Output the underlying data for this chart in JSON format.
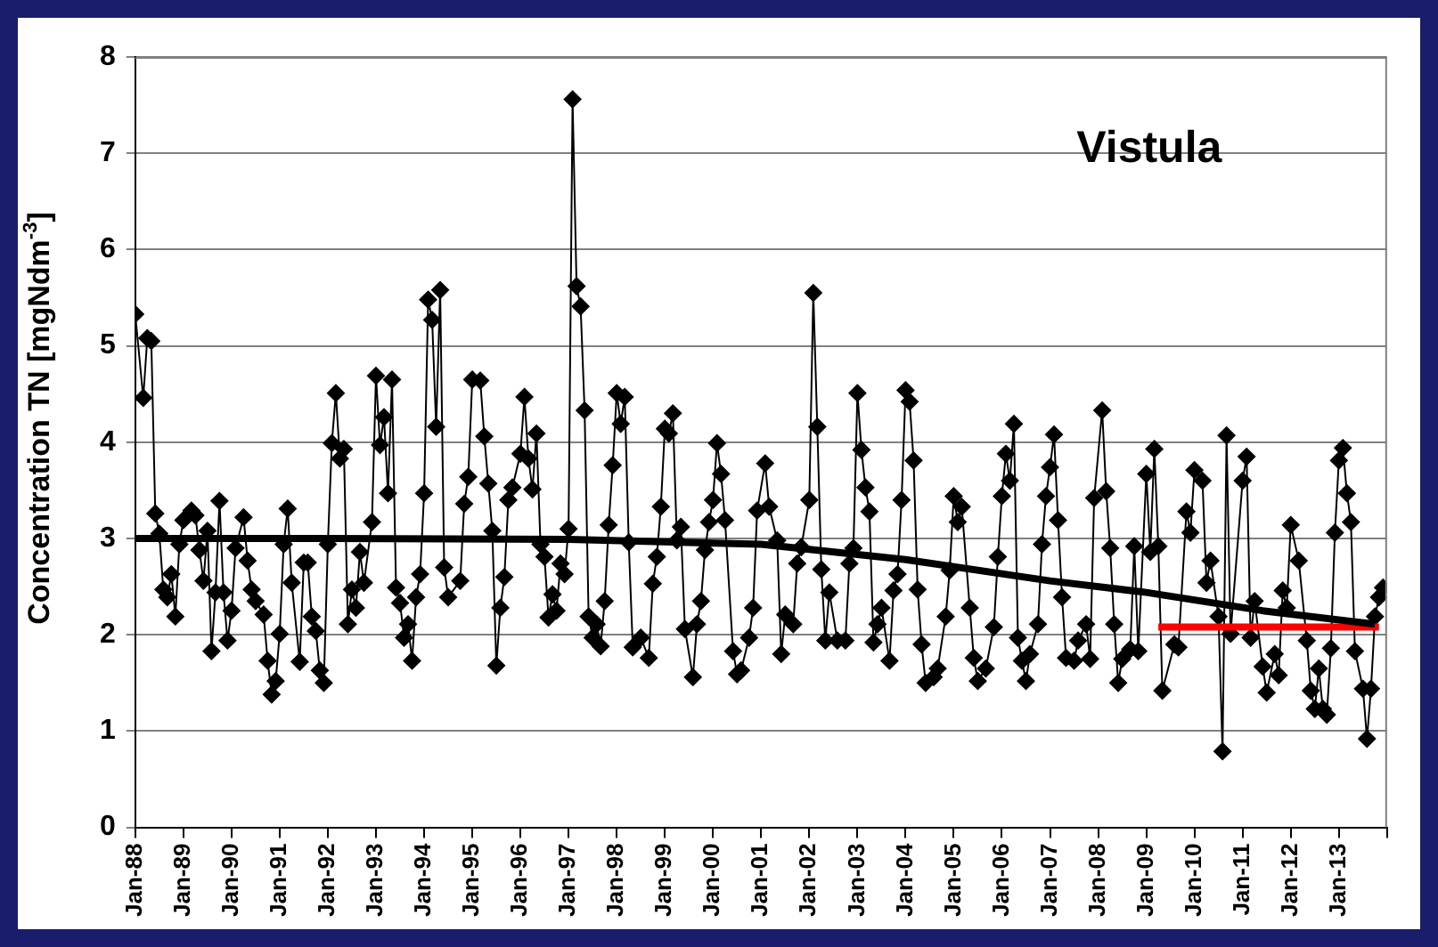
{
  "chart_data": {
    "type": "line",
    "ylabel": "Concentration TN [mgNdm$^{-3}$]",
    "annotations": [
      "Vistula"
    ],
    "marker": "diamond",
    "line_style": "solid",
    "grid": "y",
    "legend": false,
    "xlim": [
      "1988-01",
      "2014-01"
    ],
    "ylim": [
      0,
      8
    ],
    "yticks": [
      0,
      1,
      2,
      3,
      4,
      5,
      6,
      7,
      8
    ],
    "xticks": [
      {
        "value": "1988-01",
        "label": "Jan-88"
      },
      {
        "value": "1989-01",
        "label": "Jan-89"
      },
      {
        "value": "1990-01",
        "label": "Jan-90"
      },
      {
        "value": "1991-01",
        "label": "Jan-91"
      },
      {
        "value": "1992-01",
        "label": "Jan-92"
      },
      {
        "value": "1993-01",
        "label": "Jan-93"
      },
      {
        "value": "1994-01",
        "label": "Jan-94"
      },
      {
        "value": "1995-01",
        "label": "Jan-95"
      },
      {
        "value": "1996-01",
        "label": "Jan-96"
      },
      {
        "value": "1997-01",
        "label": "Jan-97"
      },
      {
        "value": "1998-01",
        "label": "Jan-98"
      },
      {
        "value": "1999-01",
        "label": "Jan-99"
      },
      {
        "value": "2000-01",
        "label": "Jan-00"
      },
      {
        "value": "2001-01",
        "label": "Jan-01"
      },
      {
        "value": "2002-01",
        "label": "Jan-02"
      },
      {
        "value": "2003-01",
        "label": "Jan-03"
      },
      {
        "value": "2004-01",
        "label": "Jan-04"
      },
      {
        "value": "2005-01",
        "label": "Jan-05"
      },
      {
        "value": "2006-01",
        "label": "Jan-06"
      },
      {
        "value": "2007-01",
        "label": "Jan-07"
      },
      {
        "value": "2008-01",
        "label": "Jan-08"
      },
      {
        "value": "2009-01",
        "label": "Jan-09"
      },
      {
        "value": "2010-01",
        "label": "Jan-10"
      },
      {
        "value": "2011-01",
        "label": "Jan-11"
      },
      {
        "value": "2012-01",
        "label": "Jan-12"
      },
      {
        "value": "2013-01",
        "label": "Jan-13"
      },
      {
        "value": "2014-01",
        "label": null
      }
    ],
    "series": [
      {
        "color": "#000000",
        "x": [
          "1988-01",
          "1988-03",
          "1988-04",
          "1988-05",
          "1988-06",
          "1988-07",
          "1988-08",
          "1988-09",
          "1988-10",
          "1988-11",
          "1988-12",
          "1989-01",
          "1989-03",
          "1989-04",
          "1989-05",
          "1989-06",
          "1989-07",
          "1989-08",
          "1989-09",
          "1989-10",
          "1989-11",
          "1989-12",
          "1990-01",
          "1990-02",
          "1990-04",
          "1990-05",
          "1990-06",
          "1990-07",
          "1990-09",
          "1990-10",
          "1990-11",
          "1990-12",
          "1991-01",
          "1991-02",
          "1991-03",
          "1991-04",
          "1991-06",
          "1991-07",
          "1991-08",
          "1991-09",
          "1991-10",
          "1991-11",
          "1991-12",
          "1992-01",
          "1992-02",
          "1992-03",
          "1992-04",
          "1992-05",
          "1992-06",
          "1992-07",
          "1992-08",
          "1992-09",
          "1992-10",
          "1992-12",
          "1993-01",
          "1993-02",
          "1993-03",
          "1993-04",
          "1993-05",
          "1993-06",
          "1993-07",
          "1993-08",
          "1993-09",
          "1993-10",
          "1993-11",
          "1993-12",
          "1994-01",
          "1994-02",
          "1994-03",
          "1994-04",
          "1994-05",
          "1994-06",
          "1994-07",
          "1994-10",
          "1994-11",
          "1994-12",
          "1995-01",
          "1995-03",
          "1995-04",
          "1995-05",
          "1995-06",
          "1995-07",
          "1995-08",
          "1995-09",
          "1995-10",
          "1995-11",
          "1996-01",
          "1996-02",
          "1996-03",
          "1996-04",
          "1996-05",
          "1996-06",
          "1996-07",
          "1996-08",
          "1996-09",
          "1996-10",
          "1996-11",
          "1996-12",
          "1997-01",
          "1997-02",
          "1997-03",
          "1997-04",
          "1997-05",
          "1997-06",
          "1997-07",
          "1997-08",
          "1997-09",
          "1997-10",
          "1997-11",
          "1997-12",
          "1998-01",
          "1998-02",
          "1998-03",
          "1998-04",
          "1998-05",
          "1998-07",
          "1998-09",
          "1998-10",
          "1998-11",
          "1998-12",
          "1999-01",
          "1999-02",
          "1999-03",
          "1999-04",
          "1999-05",
          "1999-06",
          "1999-08",
          "1999-09",
          "1999-10",
          "1999-11",
          "1999-12",
          "2000-01",
          "2000-02",
          "2000-03",
          "2000-04",
          "2000-06",
          "2000-07",
          "2000-08",
          "2000-10",
          "2000-11",
          "2000-12",
          "2001-02",
          "2001-03",
          "2001-05",
          "2001-06",
          "2001-07",
          "2001-09",
          "2001-10",
          "2001-11",
          "2002-01",
          "2002-02",
          "2002-03",
          "2002-04",
          "2002-05",
          "2002-06",
          "2002-08",
          "2002-10",
          "2002-11",
          "2002-12",
          "2003-01",
          "2003-02",
          "2003-03",
          "2003-04",
          "2003-05",
          "2003-06",
          "2003-07",
          "2003-09",
          "2003-10",
          "2003-11",
          "2003-12",
          "2004-01",
          "2004-02",
          "2004-03",
          "2004-04",
          "2004-05",
          "2004-06",
          "2004-08",
          "2004-09",
          "2004-11",
          "2004-12",
          "2005-01",
          "2005-02",
          "2005-03",
          "2005-05",
          "2005-06",
          "2005-07",
          "2005-09",
          "2005-11",
          "2005-12",
          "2006-01",
          "2006-02",
          "2006-03",
          "2006-04",
          "2006-05",
          "2006-06",
          "2006-07",
          "2006-08",
          "2006-10",
          "2006-11",
          "2006-12",
          "2007-01",
          "2007-02",
          "2007-03",
          "2007-04",
          "2007-05",
          "2007-07",
          "2007-08",
          "2007-10",
          "2007-11",
          "2007-12",
          "2008-02",
          "2008-03",
          "2008-04",
          "2008-05",
          "2008-06",
          "2008-07",
          "2008-09",
          "2008-10",
          "2008-11",
          "2009-01",
          "2009-02",
          "2009-03",
          "2009-04",
          "2009-05",
          "2009-08",
          "2009-09",
          "2009-11",
          "2009-12",
          "2010-01",
          "2010-03",
          "2010-04",
          "2010-05",
          "2010-07",
          "2010-08",
          "2010-09",
          "2010-10",
          "2011-01",
          "2011-02",
          "2011-03",
          "2011-04",
          "2011-06",
          "2011-07",
          "2011-09",
          "2011-10",
          "2011-11",
          "2011-12",
          "2012-01",
          "2012-03",
          "2012-05",
          "2012-06",
          "2012-07",
          "2012-08",
          "2012-09",
          "2012-10",
          "2012-11",
          "2012-12",
          "2013-01",
          "2013-02",
          "2013-03",
          "2013-04",
          "2013-05",
          "2013-07",
          "2013-08",
          "2013-09",
          "2013-10",
          "2013-11",
          "2013-12"
        ],
        "values": [
          5.33,
          4.46,
          5.08,
          5.05,
          3.26,
          3.05,
          2.47,
          2.39,
          2.63,
          2.19,
          2.94,
          3.19,
          3.29,
          3.24,
          2.88,
          2.56,
          3.08,
          1.83,
          2.44,
          3.39,
          2.44,
          1.94,
          2.25,
          2.9,
          3.22,
          2.77,
          2.47,
          2.35,
          2.21,
          1.73,
          1.38,
          1.52,
          2.01,
          2.94,
          3.31,
          2.54,
          1.72,
          2.75,
          2.75,
          2.19,
          2.04,
          1.63,
          1.5,
          2.94,
          3.99,
          4.51,
          3.83,
          3.93,
          2.11,
          2.47,
          2.28,
          2.86,
          2.54,
          3.17,
          4.69,
          3.97,
          4.26,
          3.47,
          4.65,
          2.49,
          2.33,
          1.97,
          2.11,
          1.73,
          2.39,
          2.63,
          3.47,
          5.48,
          5.27,
          4.16,
          5.58,
          2.7,
          2.39,
          2.56,
          3.36,
          3.64,
          4.65,
          4.64,
          4.06,
          3.57,
          3.08,
          1.68,
          2.28,
          2.6,
          3.4,
          3.53,
          3.88,
          4.47,
          3.83,
          3.51,
          4.09,
          2.94,
          2.81,
          2.18,
          2.42,
          2.25,
          2.74,
          2.63,
          3.1,
          7.56,
          5.62,
          5.41,
          4.33,
          2.19,
          1.97,
          2.11,
          1.88,
          2.35,
          3.14,
          3.76,
          4.51,
          4.19,
          4.47,
          2.96,
          1.87,
          1.97,
          1.76,
          2.53,
          2.81,
          3.33,
          4.14,
          4.09,
          4.3,
          2.98,
          3.12,
          2.06,
          1.56,
          2.11,
          2.35,
          2.88,
          3.17,
          3.4,
          3.99,
          3.67,
          3.19,
          1.83,
          1.59,
          1.63,
          1.97,
          2.28,
          3.29,
          3.78,
          3.33,
          2.98,
          1.8,
          2.21,
          2.11,
          2.74,
          2.91,
          3.4,
          5.55,
          4.16,
          2.68,
          1.94,
          2.44,
          1.94,
          1.94,
          2.74,
          2.9,
          4.51,
          3.92,
          3.53,
          3.28,
          1.92,
          2.11,
          2.28,
          1.73,
          2.46,
          2.63,
          3.4,
          4.54,
          4.42,
          3.81,
          2.47,
          1.9,
          1.5,
          1.56,
          1.65,
          2.19,
          2.67,
          3.44,
          3.17,
          3.33,
          2.28,
          1.76,
          1.52,
          1.65,
          2.08,
          2.81,
          3.44,
          3.88,
          3.6,
          4.19,
          1.97,
          1.73,
          1.52,
          1.8,
          2.11,
          2.94,
          3.44,
          3.74,
          4.08,
          3.19,
          2.39,
          1.76,
          1.73,
          1.94,
          2.11,
          1.75,
          3.42,
          4.33,
          3.49,
          2.9,
          2.11,
          1.5,
          1.75,
          1.85,
          2.92,
          1.83,
          3.67,
          2.86,
          3.93,
          2.92,
          1.42,
          1.9,
          1.87,
          3.28,
          3.06,
          3.71,
          3.6,
          2.54,
          2.77,
          2.19,
          0.79,
          4.07,
          2.01,
          3.6,
          3.85,
          1.97,
          2.35,
          1.67,
          1.4,
          1.8,
          1.58,
          2.46,
          2.28,
          3.14,
          2.77,
          1.94,
          1.42,
          1.23,
          1.65,
          1.23,
          1.17,
          1.86,
          3.06,
          3.81,
          3.94,
          3.47,
          3.17,
          1.83,
          1.44,
          0.92,
          1.44,
          2.19,
          2.39,
          2.49
        ]
      },
      {
        "color": "#000000",
        "marker": "none",
        "x": [
          "1988-01",
          "1992-01",
          "1997-01",
          "2001-01",
          "2004-01",
          "2007-01",
          "2009-01",
          "2011-06",
          "2013-10"
        ],
        "values": [
          3.0,
          3.0,
          2.99,
          2.94,
          2.78,
          2.56,
          2.44,
          2.25,
          2.11
        ]
      },
      {
        "color": "#ff0000",
        "marker": "none",
        "x": [
          "2009-04",
          "2013-11"
        ],
        "values": [
          2.08,
          2.08
        ]
      }
    ]
  }
}
